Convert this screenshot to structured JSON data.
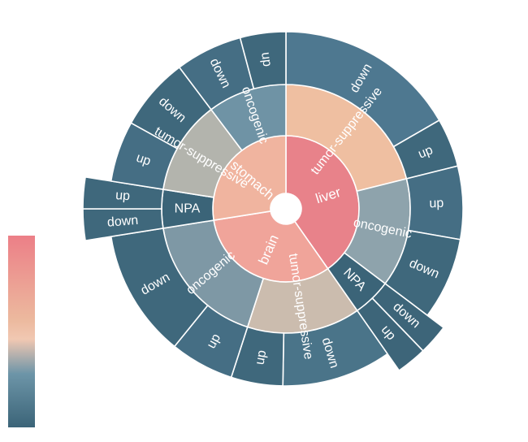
{
  "chart_data": {
    "type": "sunburst",
    "center_hole": true,
    "color_legend": {
      "type": "continuous",
      "colors_top_to_bottom": [
        "#ec7f87",
        "#f0c4ab",
        "#5b8498",
        "#3b6478"
      ]
    },
    "hierarchy": [
      {
        "name": "liver",
        "color": "#e8828a",
        "children": [
          {
            "name": "tumor-suppressive",
            "color": "#efbfa1",
            "children": [
              {
                "name": "down",
                "color": "#4e7890"
              },
              {
                "name": "up",
                "color": "#3f687c"
              }
            ]
          },
          {
            "name": "oncogenic",
            "color": "#8ea3ac",
            "children": [
              {
                "name": "up",
                "color": "#456e84"
              },
              {
                "name": "down",
                "color": "#3f687c"
              }
            ]
          },
          {
            "name": "NPA",
            "color": "#3b6478",
            "children": [
              {
                "name": "down",
                "color": "#3d6579"
              },
              {
                "name": "up",
                "color": "#3d6579"
              }
            ]
          }
        ]
      },
      {
        "name": "brain",
        "color": "#f0a49a",
        "children": [
          {
            "name": "tumor-suppressive",
            "color": "#cbbcae",
            "children": [
              {
                "name": "down",
                "color": "#4a7489"
              },
              {
                "name": "up",
                "color": "#3f687c"
              }
            ]
          },
          {
            "name": "oncogenic",
            "color": "#7e98a5",
            "children": [
              {
                "name": "up",
                "color": "#456e84"
              },
              {
                "name": "down",
                "color": "#3f687c"
              }
            ]
          }
        ]
      },
      {
        "name": "stomach",
        "color": "#f0b49f",
        "children": [
          {
            "name": "NPA",
            "color": "#3b6478",
            "children": [
              {
                "name": "down",
                "color": "#3f687c"
              },
              {
                "name": "up",
                "color": "#3f687c"
              }
            ]
          },
          {
            "name": "tumor-suppressive",
            "color": "#b3b4ad",
            "children": [
              {
                "name": "up",
                "color": "#456e84"
              },
              {
                "name": "down",
                "color": "#3f687c"
              }
            ]
          },
          {
            "name": "oncogenic",
            "color": "#6f93a5",
            "children": [
              {
                "name": "down",
                "color": "#456e84"
              },
              {
                "name": "up",
                "color": "#3f687c"
              }
            ]
          }
        ]
      }
    ]
  }
}
